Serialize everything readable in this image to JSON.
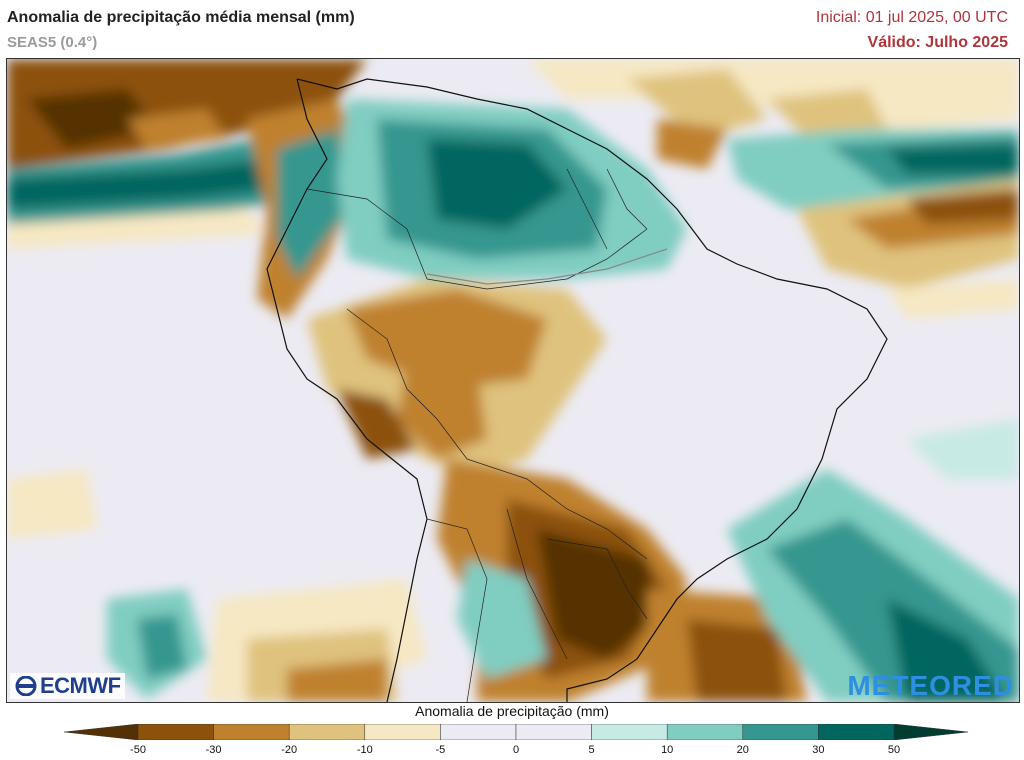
{
  "header": {
    "title": "Anomalia de precipitação média mensal (mm)",
    "model": "SEAS5 (0.4°)",
    "initial": "Inicial: 01 jul 2025, 00 UTC",
    "valid": "Válido: Julho 2025"
  },
  "logos": {
    "left": "ECMWF",
    "right": "METEORED"
  },
  "colorbar": {
    "title": "Anomalia de precipitação (mm)",
    "tick_labels": [
      "-50",
      "-30",
      "-20",
      "-10",
      "-5",
      "0",
      "5",
      "10",
      "20",
      "30",
      "50"
    ],
    "bins": [
      {
        "range": "< -50",
        "color": "#543005"
      },
      {
        "range": "-50 to -30",
        "color": "#8c510a"
      },
      {
        "range": "-30 to -20",
        "color": "#bf812d"
      },
      {
        "range": "-20 to -10",
        "color": "#dfc27d"
      },
      {
        "range": "-10 to -5",
        "color": "#f6e8c3"
      },
      {
        "range": "-5 to 0",
        "color": "#ecebf3"
      },
      {
        "range": "0 to 5",
        "color": "#ecebf3"
      },
      {
        "range": "5 to 10",
        "color": "#c7eae5"
      },
      {
        "range": "10 to 20",
        "color": "#80cdc1"
      },
      {
        "range": "20 to 30",
        "color": "#35978f"
      },
      {
        "range": "30 to 50",
        "color": "#01665e"
      },
      {
        "range": "> 50",
        "color": "#003c30"
      }
    ]
  },
  "map": {
    "region": "South America",
    "regions": [
      {
        "name": "North Pacific / Central America",
        "anomaly": "dry",
        "color": "#8c510a"
      },
      {
        "name": "Eastern Pacific ITCZ band",
        "anomaly": "wet",
        "color": "#01665e"
      },
      {
        "name": "Northern South America / Venezuela / Guianas",
        "anomaly": "wet",
        "color": "#35978f"
      },
      {
        "name": "Western Amazon / Peru / Bolivia",
        "anomaly": "dry",
        "color": "#bf812d"
      },
      {
        "name": "Central and Northeast Brazil",
        "anomaly": "near normal",
        "color": "#ecebf3"
      },
      {
        "name": "Paraguay / Southern Brazil / Uruguay",
        "anomaly": "very dry",
        "color": "#543005"
      },
      {
        "name": "Southwest Atlantic off Brazil",
        "anomaly": "wet",
        "color": "#35978f"
      },
      {
        "name": "Equatorial Atlantic",
        "anomaly": "wet",
        "color": "#01665e"
      }
    ]
  }
}
